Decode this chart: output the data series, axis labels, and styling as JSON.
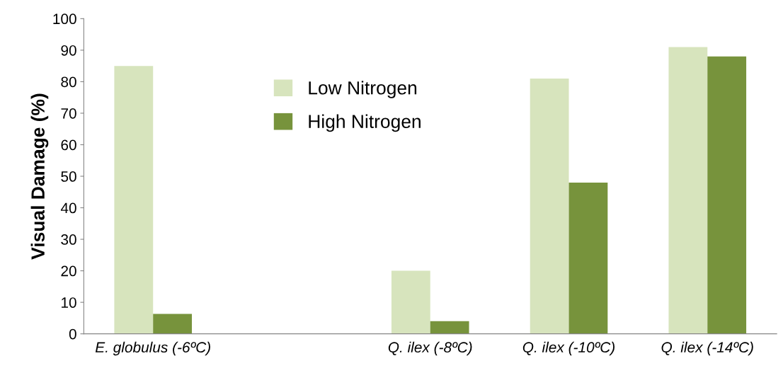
{
  "chart_data": {
    "type": "bar",
    "ylabel": "Visual Damage (%)",
    "categories": [
      "E. globulus (-6ºC)",
      null,
      "Q. ilex (-8ºC)",
      "Q. ilex (-10ºC)",
      "Q. ilex (-14ºC)"
    ],
    "series": [
      {
        "name": "Low Nitrogen",
        "color": "#d7e4bd",
        "values": [
          85,
          null,
          20,
          81,
          91
        ]
      },
      {
        "name": "High Nitrogen",
        "color": "#77933c",
        "values": [
          6.3,
          null,
          4,
          48,
          88
        ]
      }
    ],
    "ylim": [
      0,
      100
    ],
    "yticks": [
      0,
      10,
      20,
      30,
      40,
      50,
      60,
      70,
      80,
      90,
      100
    ],
    "grid": false,
    "legend": "top"
  }
}
